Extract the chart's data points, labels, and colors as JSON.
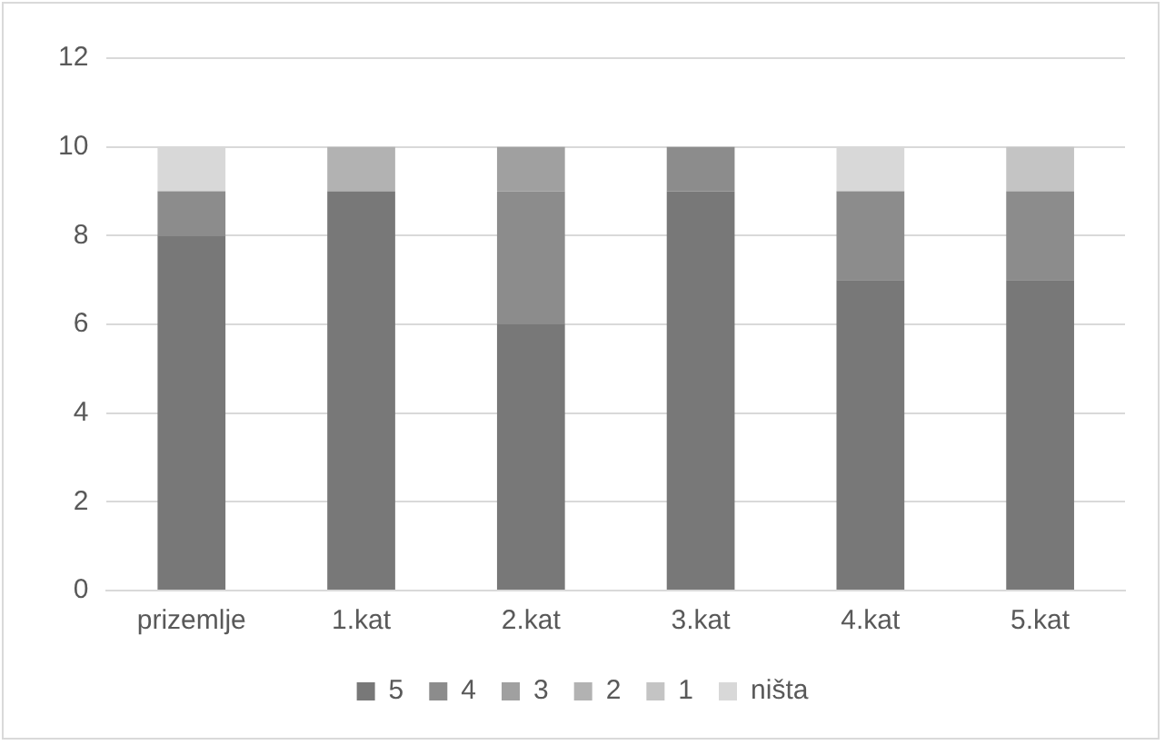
{
  "chart_data": {
    "type": "bar",
    "stacked": true,
    "categories": [
      "prizemlje",
      "1.kat",
      "2.kat",
      "3.kat",
      "4.kat",
      "5.kat"
    ],
    "series": [
      {
        "name": "5",
        "color": "#787878",
        "values": [
          8,
          9,
          6,
          9,
          7,
          7
        ]
      },
      {
        "name": "4",
        "color": "#8c8c8c",
        "values": [
          1,
          0,
          3,
          1,
          2,
          2
        ]
      },
      {
        "name": "3",
        "color": "#a0a0a0",
        "values": [
          0,
          0,
          1,
          0,
          0,
          0
        ]
      },
      {
        "name": "2",
        "color": "#b2b2b2",
        "values": [
          0,
          1,
          0,
          0,
          0,
          0
        ]
      },
      {
        "name": "1",
        "color": "#c4c4c4",
        "values": [
          0,
          0,
          0,
          0,
          0,
          1
        ]
      },
      {
        "name": "ništa",
        "color": "#d8d8d8",
        "values": [
          1,
          0,
          0,
          0,
          1,
          0
        ]
      }
    ],
    "ylim": [
      0,
      12
    ],
    "yticks": [
      0,
      2,
      4,
      6,
      8,
      10,
      12
    ],
    "grid": "y",
    "legend": "bottom"
  }
}
